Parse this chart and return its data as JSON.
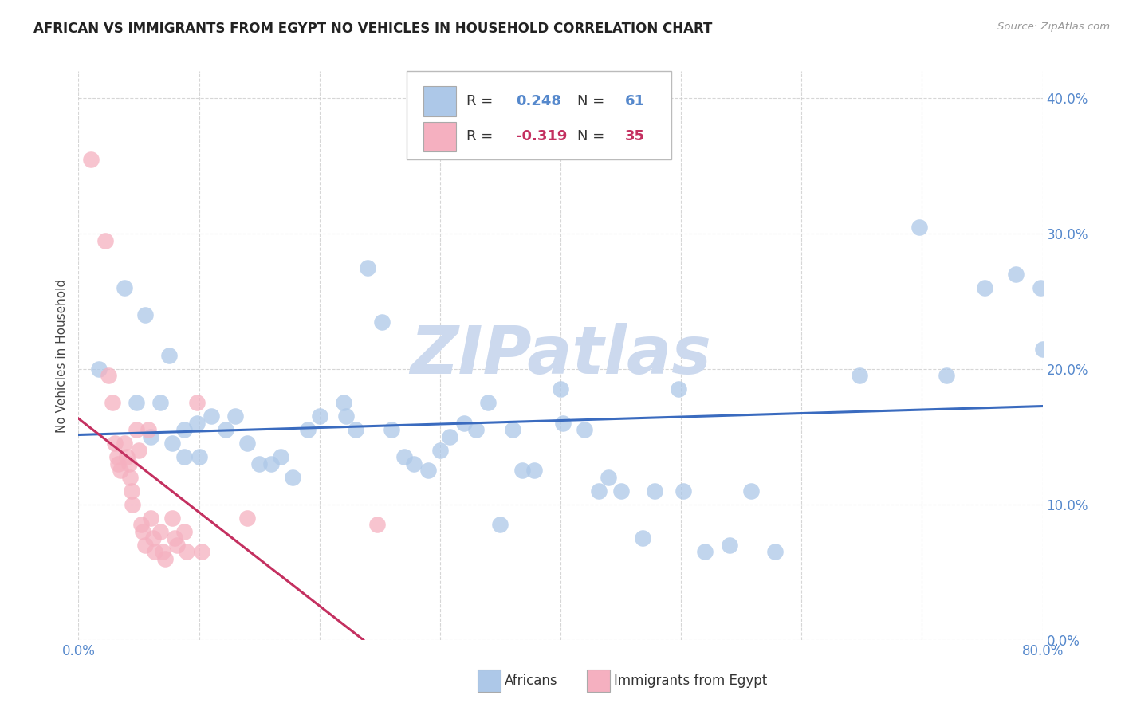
{
  "title": "AFRICAN VS IMMIGRANTS FROM EGYPT NO VEHICLES IN HOUSEHOLD CORRELATION CHART",
  "source": "Source: ZipAtlas.com",
  "ylabel": "No Vehicles in Household",
  "watermark": "ZIPatlas",
  "xlim": [
    0.0,
    0.8
  ],
  "ylim": [
    0.0,
    0.42
  ],
  "yticks": [
    0.0,
    0.1,
    0.2,
    0.3,
    0.4
  ],
  "xticks": [
    0.0,
    0.1,
    0.2,
    0.3,
    0.4,
    0.5,
    0.6,
    0.7,
    0.8
  ],
  "blue_R": 0.248,
  "blue_N": 61,
  "pink_R": -0.319,
  "pink_N": 35,
  "blue_color": "#adc8e8",
  "pink_color": "#f5b0c0",
  "blue_line_color": "#3a6bbf",
  "pink_line_color": "#c43060",
  "tick_color": "#5588cc",
  "blue_points": [
    [
      0.017,
      0.2
    ],
    [
      0.038,
      0.26
    ],
    [
      0.055,
      0.24
    ],
    [
      0.075,
      0.21
    ],
    [
      0.048,
      0.175
    ],
    [
      0.068,
      0.175
    ],
    [
      0.088,
      0.155
    ],
    [
      0.098,
      0.16
    ],
    [
      0.06,
      0.15
    ],
    [
      0.078,
      0.145
    ],
    [
      0.088,
      0.135
    ],
    [
      0.1,
      0.135
    ],
    [
      0.11,
      0.165
    ],
    [
      0.122,
      0.155
    ],
    [
      0.13,
      0.165
    ],
    [
      0.14,
      0.145
    ],
    [
      0.15,
      0.13
    ],
    [
      0.16,
      0.13
    ],
    [
      0.168,
      0.135
    ],
    [
      0.178,
      0.12
    ],
    [
      0.19,
      0.155
    ],
    [
      0.2,
      0.165
    ],
    [
      0.22,
      0.175
    ],
    [
      0.222,
      0.165
    ],
    [
      0.23,
      0.155
    ],
    [
      0.24,
      0.275
    ],
    [
      0.252,
      0.235
    ],
    [
      0.26,
      0.155
    ],
    [
      0.27,
      0.135
    ],
    [
      0.278,
      0.13
    ],
    [
      0.29,
      0.125
    ],
    [
      0.3,
      0.14
    ],
    [
      0.308,
      0.15
    ],
    [
      0.32,
      0.16
    ],
    [
      0.33,
      0.155
    ],
    [
      0.34,
      0.175
    ],
    [
      0.35,
      0.085
    ],
    [
      0.36,
      0.155
    ],
    [
      0.368,
      0.125
    ],
    [
      0.378,
      0.125
    ],
    [
      0.4,
      0.185
    ],
    [
      0.402,
      0.16
    ],
    [
      0.42,
      0.155
    ],
    [
      0.432,
      0.11
    ],
    [
      0.44,
      0.12
    ],
    [
      0.45,
      0.11
    ],
    [
      0.468,
      0.075
    ],
    [
      0.478,
      0.11
    ],
    [
      0.498,
      0.185
    ],
    [
      0.502,
      0.11
    ],
    [
      0.52,
      0.065
    ],
    [
      0.54,
      0.07
    ],
    [
      0.558,
      0.11
    ],
    [
      0.578,
      0.065
    ],
    [
      0.648,
      0.195
    ],
    [
      0.698,
      0.305
    ],
    [
      0.72,
      0.195
    ],
    [
      0.752,
      0.26
    ],
    [
      0.778,
      0.27
    ],
    [
      0.798,
      0.26
    ],
    [
      0.8,
      0.215
    ]
  ],
  "pink_points": [
    [
      0.01,
      0.355
    ],
    [
      0.022,
      0.295
    ],
    [
      0.025,
      0.195
    ],
    [
      0.028,
      0.175
    ],
    [
      0.03,
      0.145
    ],
    [
      0.032,
      0.135
    ],
    [
      0.033,
      0.13
    ],
    [
      0.035,
      0.125
    ],
    [
      0.038,
      0.145
    ],
    [
      0.04,
      0.135
    ],
    [
      0.042,
      0.13
    ],
    [
      0.043,
      0.12
    ],
    [
      0.044,
      0.11
    ],
    [
      0.045,
      0.1
    ],
    [
      0.048,
      0.155
    ],
    [
      0.05,
      0.14
    ],
    [
      0.052,
      0.085
    ],
    [
      0.053,
      0.08
    ],
    [
      0.055,
      0.07
    ],
    [
      0.058,
      0.155
    ],
    [
      0.06,
      0.09
    ],
    [
      0.062,
      0.075
    ],
    [
      0.063,
      0.065
    ],
    [
      0.068,
      0.08
    ],
    [
      0.07,
      0.065
    ],
    [
      0.072,
      0.06
    ],
    [
      0.078,
      0.09
    ],
    [
      0.08,
      0.075
    ],
    [
      0.082,
      0.07
    ],
    [
      0.088,
      0.08
    ],
    [
      0.09,
      0.065
    ],
    [
      0.098,
      0.175
    ],
    [
      0.102,
      0.065
    ],
    [
      0.14,
      0.09
    ],
    [
      0.248,
      0.085
    ]
  ],
  "title_fontsize": 12,
  "axis_label_fontsize": 11,
  "tick_fontsize": 12,
  "legend_fontsize": 13,
  "watermark_fontsize": 60,
  "watermark_color": "#ccd9ee",
  "background_color": "#ffffff"
}
